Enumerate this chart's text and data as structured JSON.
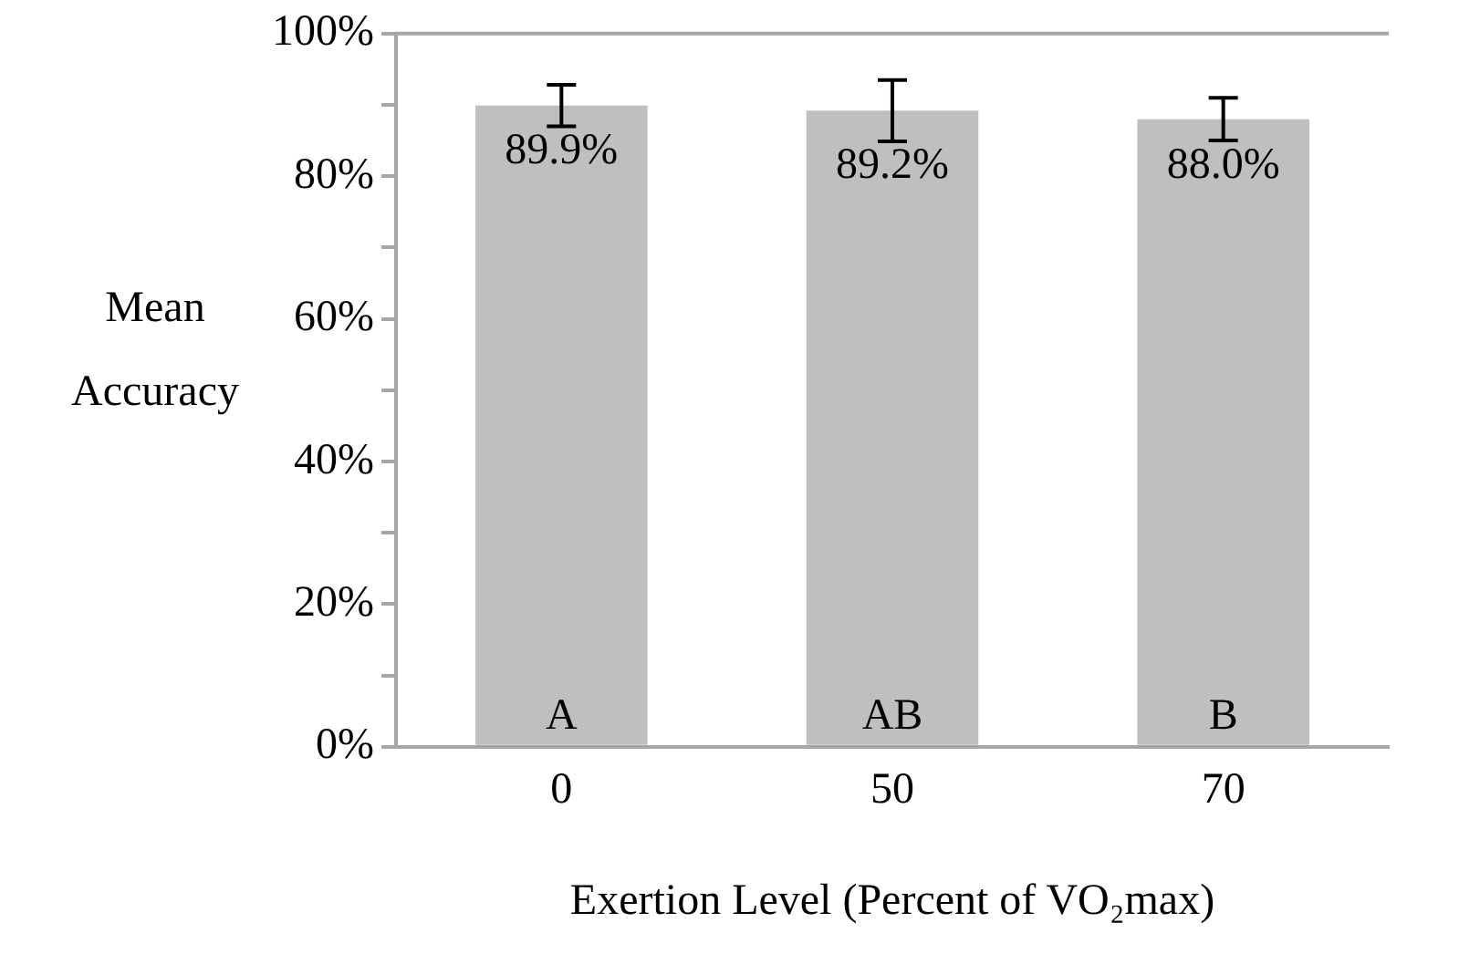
{
  "chart_data": {
    "type": "bar",
    "xlabel": "Exertion Level (Percent of VO₂max)",
    "ylabel": "Mean\nAccuracy",
    "categories": [
      "0",
      "50",
      "70"
    ],
    "values": [
      89.9,
      89.2,
      88.0
    ],
    "color": "#bfbfbf",
    "errors": [
      2.9,
      4.3,
      3.0
    ],
    "value_labels": [
      "89.9%",
      "89.2%",
      "88.0%"
    ],
    "annotations": [
      "A",
      "AB",
      "B"
    ],
    "ylim": [
      0,
      100
    ],
    "yticks": [
      {
        "value": 0,
        "label": "0%"
      },
      {
        "value": 10,
        "label": null
      },
      {
        "value": 20,
        "label": "20%"
      },
      {
        "value": 30,
        "label": null
      },
      {
        "value": 40,
        "label": "40%"
      },
      {
        "value": 50,
        "label": null
      },
      {
        "value": 60,
        "label": "60%"
      },
      {
        "value": 70,
        "label": null
      },
      {
        "value": 80,
        "label": "80%"
      },
      {
        "value": 90,
        "label": null
      },
      {
        "value": 100,
        "label": "100%"
      }
    ],
    "grid": false,
    "legend": false
  }
}
